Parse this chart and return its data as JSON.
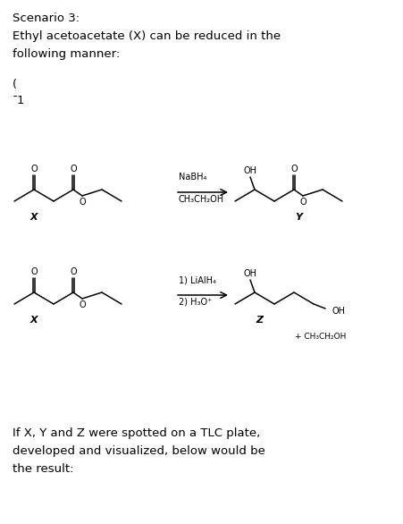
{
  "background_color": "#ffffff",
  "title_line1": "Scenario 3:",
  "body_line1": "Ethyl acetoacetate (X) can be reduced in the",
  "body_line2": "following manner:",
  "footer_line1": "If X, Y and Z were spotted on a TLC plate,",
  "footer_line2": "developed and visualized, below would be",
  "footer_line3": "the result:",
  "reagent1_line1": "NaBH₄",
  "reagent1_line2": "CH₃CH₂OH",
  "reagent2_line1": "1) LiAlH₄",
  "reagent2_line2": "2) H₃O⁺",
  "label_x1": "X",
  "label_x2": "X",
  "label_y": "Y",
  "label_z": "Z",
  "label_etoh": "+ CH₃CH₂OH",
  "partial_char1": "(",
  "partial_char2": "¯1",
  "figsize": [
    4.51,
    5.86
  ],
  "dpi": 100
}
